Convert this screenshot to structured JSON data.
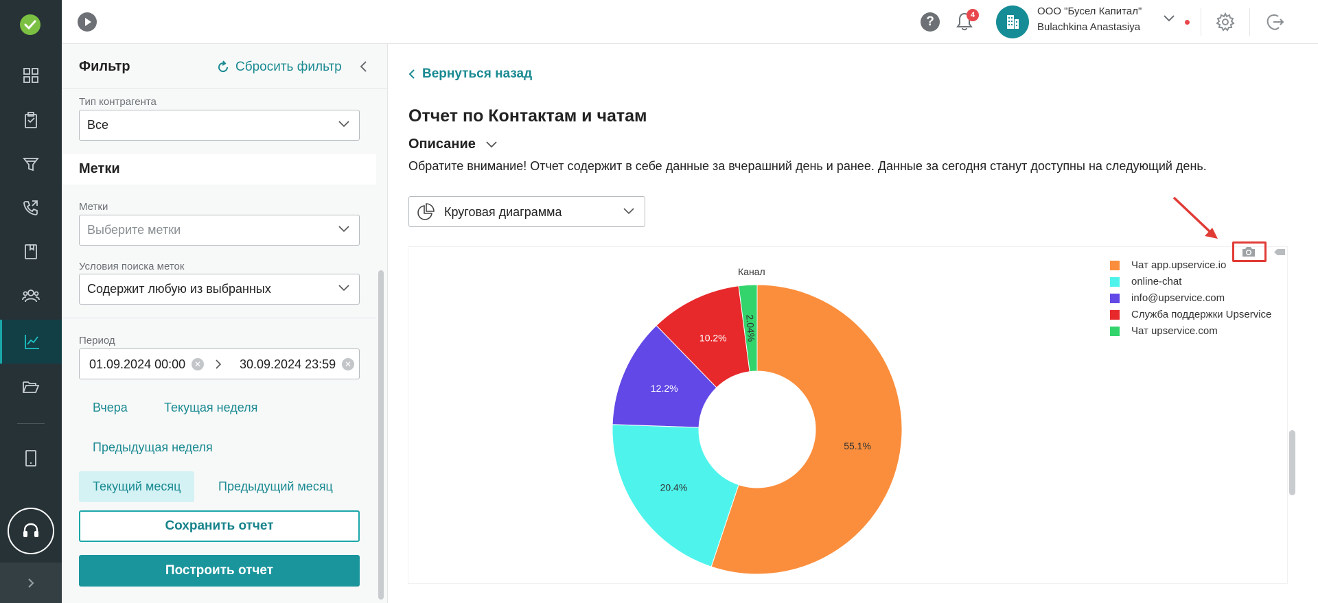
{
  "topbar": {
    "notifications_count": "4",
    "org_name": "ООО \"Бусел Капитал\"",
    "user_name": "Bulachkina Anastasiya"
  },
  "rail": {
    "items": [
      "grid-icon",
      "clipboard-icon",
      "funnel-icon",
      "phone-icon",
      "book-icon",
      "users-icon",
      "chart-icon",
      "folder-icon",
      "tablet-icon"
    ],
    "active": "chart-icon"
  },
  "filter": {
    "title": "Фильтр",
    "reset_label": "Сбросить фильтр",
    "counterparty_type_label": "Тип контрагента",
    "counterparty_type_value": "Все",
    "tags_section": "Метки",
    "tags_label": "Метки",
    "tags_placeholder": "Выберите метки",
    "tag_condition_label": "Условия поиска меток",
    "tag_condition_value": "Содержит любую из выбранных",
    "period_label": "Период",
    "period_from": "01.09.2024 00:00",
    "period_to": "30.09.2024 23:59",
    "quick_yesterday": "Вчера",
    "quick_current_week": "Текущая неделя",
    "quick_previous_week": "Предыдущая неделя",
    "quick_current_month": "Текущий месяц",
    "quick_previous_month": "Предыдущий месяц",
    "save_label": "Сохранить отчет",
    "build_label": "Построить отчет"
  },
  "main": {
    "back_label": "Вернуться назад",
    "title": "Отчет по Контактам и чатам",
    "description_label": "Описание",
    "notice": "Обратите внимание! Отчет содержит в себе данные за вчерашний день и ранее. Данные за сегодня станут доступны на следующий день.",
    "chart_type_value": "Круговая диаграмма"
  },
  "colors": {
    "accent": "#1a959c",
    "highlight": "#e13b35"
  },
  "chart_data": {
    "type": "pie",
    "title": "Канал",
    "donut": true,
    "legend_position": "top-right",
    "labels": [
      "Чат app.upservice.io",
      "online-chat",
      "info@upservice.com",
      "Служба поддержки Upservice",
      "Чат upservice.com"
    ],
    "values": [
      55.1,
      20.4,
      12.2,
      10.2,
      2.04
    ],
    "value_labels": [
      "55.1%",
      "20.4%",
      "12.2%",
      "10.2%",
      "2.04%"
    ],
    "colors": [
      "#fb8e3c",
      "#4ef4ec",
      "#6248e6",
      "#e8292b",
      "#33d46c"
    ]
  }
}
